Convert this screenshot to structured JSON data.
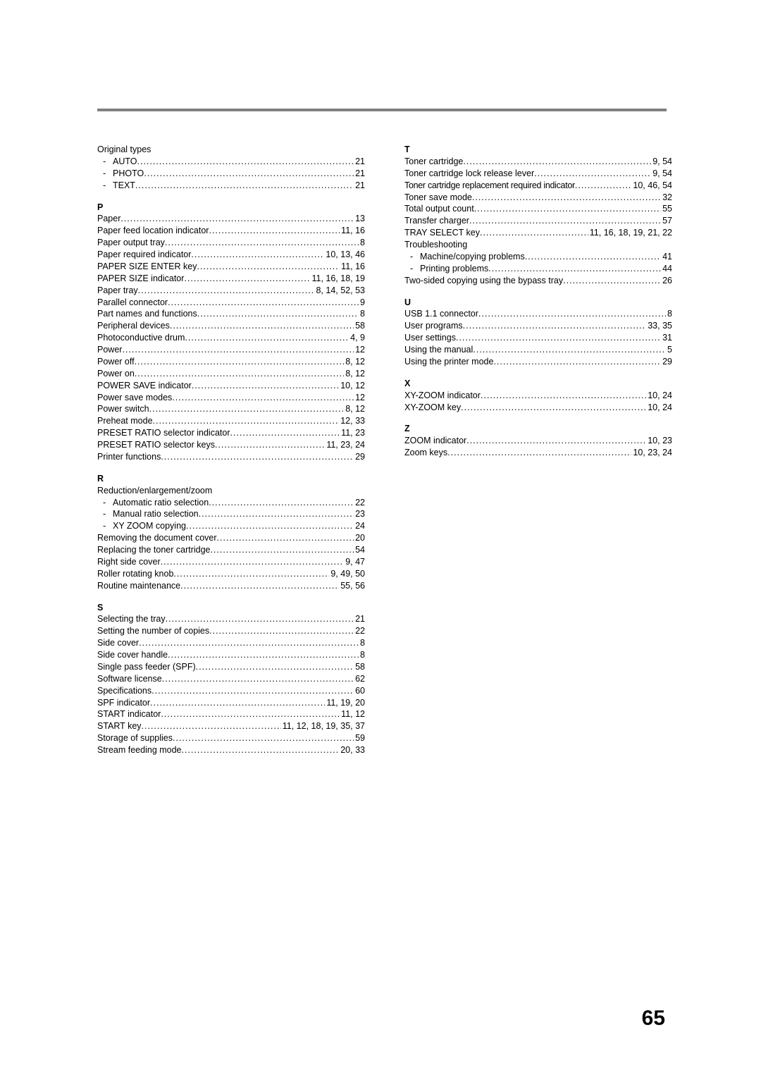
{
  "pageNumber": "65",
  "left": [
    {
      "type": "text",
      "text": "Original types"
    },
    {
      "type": "sub",
      "label": "AUTO",
      "page": "21"
    },
    {
      "type": "sub",
      "label": "PHOTO",
      "page": "21"
    },
    {
      "type": "sub",
      "label": "TEXT",
      "page": "21"
    },
    {
      "type": "head",
      "text": "P"
    },
    {
      "type": "entry",
      "label": "Paper",
      "page": "13"
    },
    {
      "type": "entry",
      "label": "Paper feed location indicator",
      "page": "11, 16"
    },
    {
      "type": "entry",
      "label": "Paper output tray",
      "page": "8"
    },
    {
      "type": "entry",
      "label": "Paper required indicator",
      "page": "10, 13, 46"
    },
    {
      "type": "entry",
      "label": "PAPER SIZE ENTER key",
      "page": "11, 16"
    },
    {
      "type": "entry",
      "label": "PAPER SIZE indicator",
      "page": "11, 16, 18, 19"
    },
    {
      "type": "entry",
      "label": "Paper tray",
      "page": "8, 14, 52, 53"
    },
    {
      "type": "entry",
      "label": "Parallel connector",
      "page": "9"
    },
    {
      "type": "entry",
      "label": "Part names and functions",
      "page": "8"
    },
    {
      "type": "entry",
      "label": "Peripheral devices",
      "page": "58"
    },
    {
      "type": "entry",
      "label": "Photoconductive drum",
      "page": "4, 9"
    },
    {
      "type": "entry",
      "label": "Power",
      "page": "12"
    },
    {
      "type": "entry",
      "label": "Power off",
      "page": "8, 12"
    },
    {
      "type": "entry",
      "label": "Power on",
      "page": "8, 12"
    },
    {
      "type": "entry",
      "label": "POWER SAVE indicator",
      "page": "10, 12"
    },
    {
      "type": "entry",
      "label": "Power save modes",
      "page": "12"
    },
    {
      "type": "entry",
      "label": "Power switch",
      "page": "8, 12"
    },
    {
      "type": "entry",
      "label": "Preheat mode",
      "page": "12, 33"
    },
    {
      "type": "entry",
      "label": "PRESET RATIO selector indicator",
      "page": "11, 23"
    },
    {
      "type": "entry",
      "label": "PRESET RATIO selector keys",
      "page": "11, 23, 24"
    },
    {
      "type": "entry",
      "label": "Printer functions",
      "page": "29"
    },
    {
      "type": "head",
      "text": "R"
    },
    {
      "type": "text",
      "text": "Reduction/enlargement/zoom"
    },
    {
      "type": "sub",
      "label": "Automatic ratio selection",
      "page": "22"
    },
    {
      "type": "sub",
      "label": "Manual ratio selection",
      "page": "23"
    },
    {
      "type": "sub",
      "label": "XY ZOOM copying",
      "page": "24"
    },
    {
      "type": "entry",
      "label": "Removing the document cover",
      "page": "20"
    },
    {
      "type": "entry",
      "label": "Replacing the toner cartridge",
      "page": "54"
    },
    {
      "type": "entry",
      "label": "Right side cover",
      "page": "9, 47"
    },
    {
      "type": "entry",
      "label": "Roller rotating knob",
      "page": "9, 49, 50"
    },
    {
      "type": "entry",
      "label": "Routine maintenance",
      "page": "55, 56"
    },
    {
      "type": "head",
      "text": "S"
    },
    {
      "type": "entry",
      "label": "Selecting the tray",
      "page": "21"
    },
    {
      "type": "entry",
      "label": "Setting the number of copies",
      "page": "22"
    },
    {
      "type": "entry",
      "label": "Side cover",
      "page": "8"
    },
    {
      "type": "entry",
      "label": "Side cover handle",
      "page": "8"
    },
    {
      "type": "entry",
      "label": "Single pass feeder (SPF)",
      "page": "58"
    },
    {
      "type": "entry",
      "label": "Software license",
      "page": "62"
    },
    {
      "type": "entry",
      "label": "Specifications",
      "page": "60"
    },
    {
      "type": "entry",
      "label": "SPF indicator",
      "page": "11, 19, 20"
    },
    {
      "type": "entry",
      "label": "START indicator",
      "page": "11, 12"
    },
    {
      "type": "entry",
      "label": "START key",
      "page": "11, 12, 18, 19, 35, 37"
    },
    {
      "type": "entry",
      "label": "Storage of supplies",
      "page": "59"
    },
    {
      "type": "entry",
      "label": "Stream feeding mode",
      "page": "20, 33"
    }
  ],
  "right": [
    {
      "type": "head",
      "text": "T",
      "first": true
    },
    {
      "type": "entry",
      "label": "Toner cartridge",
      "page": "9, 54"
    },
    {
      "type": "entry",
      "label": "Toner cartridge lock release lever",
      "page": "9, 54"
    },
    {
      "type": "entry",
      "label": "Toner cartridge replacement required indicator",
      "page": "10, 46, 54",
      "condensed": true
    },
    {
      "type": "entry",
      "label": "Toner save mode",
      "page": "32"
    },
    {
      "type": "entry",
      "label": "Total output count",
      "page": "55"
    },
    {
      "type": "entry",
      "label": "Transfer charger",
      "page": "57"
    },
    {
      "type": "entry",
      "label": "TRAY SELECT key",
      "page": "11, 16, 18, 19, 21, 22"
    },
    {
      "type": "text",
      "text": "Troubleshooting"
    },
    {
      "type": "sub",
      "label": "Machine/copying problems",
      "page": "41"
    },
    {
      "type": "sub",
      "label": "Printing problems",
      "page": "44"
    },
    {
      "type": "entry",
      "label": "Two-sided copying using the bypass tray",
      "page": "26"
    },
    {
      "type": "head",
      "text": "U"
    },
    {
      "type": "entry",
      "label": "USB 1.1 connector",
      "page": "8"
    },
    {
      "type": "entry",
      "label": "User programs",
      "page": "33, 35"
    },
    {
      "type": "entry",
      "label": "User settings",
      "page": "31"
    },
    {
      "type": "entry",
      "label": "Using the manual",
      "page": "5"
    },
    {
      "type": "entry",
      "label": "Using the printer mode",
      "page": "29"
    },
    {
      "type": "head",
      "text": "X"
    },
    {
      "type": "entry",
      "label": "XY-ZOOM indicator",
      "page": "10, 24"
    },
    {
      "type": "entry",
      "label": "XY-ZOOM key",
      "page": "10, 24"
    },
    {
      "type": "head",
      "text": "Z"
    },
    {
      "type": "entry",
      "label": "ZOOM indicator",
      "page": "10, 23"
    },
    {
      "type": "entry",
      "label": "Zoom keys",
      "page": "10, 23, 24"
    }
  ]
}
